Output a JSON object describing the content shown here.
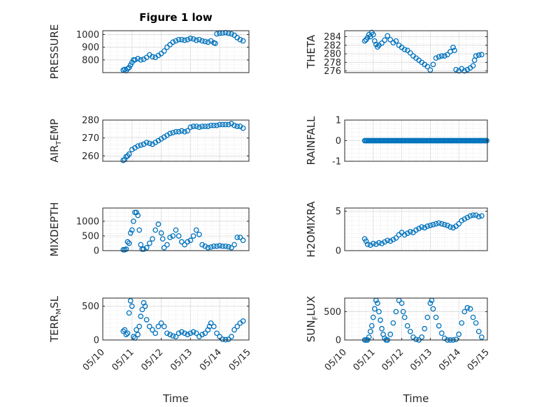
{
  "title": "Figure 1 low",
  "marker_color": "#0072bd",
  "chart_data": [
    {
      "type": "scatter",
      "id": "pressure",
      "title": "Figure 1 low",
      "ylabel_parts": [
        "PRESSURE"
      ],
      "xlabel": "",
      "xlim": [
        0,
        5
      ],
      "ylim": [
        700,
        1030
      ],
      "xticks": [],
      "xticklabels": [],
      "yticks": [
        800,
        900,
        1000
      ],
      "yticklabels": [
        "800",
        "900",
        "1000"
      ],
      "grid": true,
      "x": [
        0.7,
        0.75,
        0.8,
        0.85,
        0.9,
        0.95,
        1.0,
        1.05,
        1.1,
        1.2,
        1.3,
        1.4,
        1.5,
        1.6,
        1.7,
        1.8,
        1.9,
        2.0,
        2.1,
        2.2,
        2.3,
        2.4,
        2.5,
        2.6,
        2.7,
        2.8,
        2.9,
        3.0,
        3.1,
        3.2,
        3.3,
        3.4,
        3.5,
        3.6,
        3.7,
        3.8,
        3.85,
        3.9,
        4.0,
        4.1,
        4.2,
        4.3,
        4.4,
        4.5,
        4.6,
        4.7,
        4.8
      ],
      "y": [
        720,
        725,
        715,
        730,
        740,
        760,
        780,
        800,
        800,
        810,
        800,
        805,
        820,
        840,
        825,
        820,
        835,
        850,
        870,
        900,
        920,
        940,
        950,
        960,
        960,
        955,
        960,
        970,
        965,
        955,
        960,
        950,
        945,
        940,
        950,
        935,
        930,
        1005,
        1010,
        1012,
        1015,
        1010,
        1005,
        995,
        975,
        960,
        950
      ]
    },
    {
      "type": "scatter",
      "id": "theta",
      "ylabel_parts": [
        "THETA"
      ],
      "xlabel": "",
      "xlim": [
        0,
        5
      ],
      "ylim": [
        275.6,
        285.4
      ],
      "xticks": [],
      "xticklabels": [],
      "yticks": [
        276,
        278,
        280,
        282,
        284
      ],
      "yticklabels": [
        "276",
        "278",
        "280",
        "282",
        "284"
      ],
      "grid": true,
      "x": [
        0.7,
        0.75,
        0.8,
        0.85,
        0.9,
        0.95,
        1.0,
        1.05,
        1.1,
        1.15,
        1.2,
        1.3,
        1.4,
        1.5,
        1.6,
        1.7,
        1.8,
        1.9,
        2.0,
        2.1,
        2.2,
        2.3,
        2.4,
        2.5,
        2.6,
        2.7,
        2.8,
        2.9,
        3.0,
        3.1,
        3.2,
        3.3,
        3.4,
        3.5,
        3.6,
        3.7,
        3.8,
        3.85,
        3.9,
        4.0,
        4.1,
        4.2,
        4.3,
        4.4,
        4.5,
        4.55,
        4.6,
        4.7,
        4.8
      ],
      "y": [
        283.0,
        283.3,
        283.8,
        284.5,
        284.0,
        285.0,
        284.5,
        283.0,
        282.2,
        281.6,
        282.0,
        282.5,
        283.2,
        284.2,
        283.3,
        282.6,
        283.0,
        282.0,
        281.5,
        281.0,
        280.8,
        280.2,
        279.5,
        279.0,
        278.5,
        278.0,
        277.5,
        277.0,
        276.2,
        277.5,
        279.0,
        279.3,
        279.5,
        279.5,
        279.8,
        280.5,
        281.5,
        280.8,
        276.3,
        276.0,
        276.5,
        276.0,
        276.3,
        276.7,
        277.2,
        278.5,
        279.5,
        279.7,
        279.8
      ]
    },
    {
      "type": "scatter",
      "id": "air_temp",
      "ylabel_parts": [
        "AIR",
        "T",
        "EMP"
      ],
      "xlabel": "",
      "xlim": [
        0,
        5
      ],
      "ylim": [
        257,
        280
      ],
      "xticks": [],
      "xticklabels": [],
      "yticks": [
        260,
        270,
        280
      ],
      "yticklabels": [
        "260",
        "270",
        "280"
      ],
      "grid": true,
      "x": [
        0.7,
        0.75,
        0.8,
        0.85,
        0.9,
        1.0,
        1.1,
        1.2,
        1.3,
        1.4,
        1.5,
        1.6,
        1.7,
        1.8,
        1.9,
        2.0,
        2.1,
        2.2,
        2.3,
        2.4,
        2.5,
        2.6,
        2.7,
        2.8,
        2.9,
        3.0,
        3.1,
        3.2,
        3.3,
        3.4,
        3.5,
        3.6,
        3.7,
        3.8,
        3.9,
        4.0,
        4.1,
        4.2,
        4.3,
        4.4,
        4.5,
        4.6,
        4.7,
        4.8
      ],
      "y": [
        257.5,
        258.0,
        259.5,
        260.0,
        261.0,
        263.5,
        264.5,
        265.5,
        266.0,
        266.5,
        267.5,
        267.0,
        266.5,
        267.5,
        268.5,
        269.5,
        270.5,
        271.5,
        272.5,
        273.0,
        273.5,
        273.5,
        274.0,
        273.5,
        274.0,
        276.0,
        276.5,
        276.5,
        276.0,
        276.5,
        276.5,
        276.5,
        277.0,
        277.0,
        277.0,
        277.5,
        277.5,
        277.5,
        277.5,
        278.0,
        277.0,
        276.5,
        276.5,
        275.5
      ]
    },
    {
      "type": "scatter",
      "id": "rainfall",
      "ylabel_parts": [
        "RAINFALL"
      ],
      "xlabel": "",
      "xlim": [
        0,
        5
      ],
      "ylim": [
        -1,
        1
      ],
      "xticks": [],
      "xticklabels": [],
      "yticks": [
        -1,
        0,
        1
      ],
      "yticklabels": [
        "-1",
        "0",
        "1"
      ],
      "grid": true,
      "x_range": [
        0.7,
        5.0
      ],
      "x_step": 0.04,
      "constant_y": 0
    },
    {
      "type": "scatter",
      "id": "mixdepth",
      "ylabel_parts": [
        "MIXDEPTH"
      ],
      "xlabel": "",
      "xlim": [
        0,
        5
      ],
      "ylim": [
        0,
        1450
      ],
      "xticks": [],
      "xticklabels": [],
      "yticks": [
        0,
        500,
        1000
      ],
      "yticklabels": [
        "0",
        "500",
        "1000"
      ],
      "grid": true,
      "x": [
        0.7,
        0.75,
        0.8,
        0.85,
        0.9,
        0.95,
        1.0,
        1.05,
        1.1,
        1.15,
        1.2,
        1.25,
        1.3,
        1.35,
        1.4,
        1.5,
        1.6,
        1.7,
        1.8,
        1.9,
        2.0,
        2.05,
        2.1,
        2.2,
        2.3,
        2.4,
        2.5,
        2.6,
        2.7,
        2.8,
        2.9,
        3.0,
        3.1,
        3.2,
        3.3,
        3.4,
        3.5,
        3.6,
        3.7,
        3.8,
        3.9,
        4.0,
        4.1,
        4.2,
        4.3,
        4.4,
        4.5,
        4.6,
        4.7,
        4.8
      ],
      "y": [
        30,
        30,
        50,
        300,
        250,
        600,
        700,
        1000,
        1300,
        1300,
        1200,
        700,
        200,
        50,
        50,
        100,
        250,
        400,
        700,
        900,
        600,
        400,
        100,
        200,
        450,
        500,
        700,
        500,
        300,
        200,
        300,
        350,
        500,
        700,
        550,
        200,
        150,
        100,
        120,
        150,
        150,
        170,
        150,
        150,
        130,
        100,
        200,
        450,
        450,
        350
      ]
    },
    {
      "type": "scatter",
      "id": "h2omixra",
      "ylabel_parts": [
        "H2OMIXRA"
      ],
      "xlabel": "",
      "xlim": [
        0,
        5
      ],
      "ylim": [
        0,
        5.4
      ],
      "xticks": [],
      "xticklabels": [],
      "yticks": [
        0,
        5
      ],
      "yticklabels": [
        "0",
        "5"
      ],
      "grid": true,
      "x": [
        0.7,
        0.75,
        0.8,
        0.9,
        1.0,
        1.1,
        1.2,
        1.3,
        1.4,
        1.5,
        1.6,
        1.7,
        1.8,
        1.9,
        2.0,
        2.1,
        2.2,
        2.3,
        2.4,
        2.5,
        2.6,
        2.7,
        2.8,
        2.9,
        3.0,
        3.1,
        3.2,
        3.3,
        3.4,
        3.5,
        3.6,
        3.7,
        3.8,
        3.9,
        4.0,
        4.1,
        4.2,
        4.3,
        4.4,
        4.5,
        4.6,
        4.7,
        4.8
      ],
      "y": [
        1.5,
        1.2,
        0.8,
        0.7,
        0.9,
        0.8,
        1.0,
        0.9,
        1.1,
        1.3,
        1.2,
        1.4,
        1.6,
        2.0,
        2.3,
        2.0,
        2.2,
        2.4,
        2.3,
        2.6,
        2.8,
        3.0,
        2.9,
        3.1,
        3.2,
        3.3,
        3.4,
        3.5,
        3.4,
        3.3,
        3.2,
        3.0,
        2.9,
        3.1,
        3.4,
        3.8,
        4.0,
        4.2,
        4.4,
        4.5,
        4.5,
        4.3,
        4.4
      ]
    },
    {
      "type": "scatter",
      "id": "terr_msl",
      "ylabel_parts": [
        "TERR",
        "M",
        "SL"
      ],
      "xlabel": "Time",
      "xlim": [
        0,
        5
      ],
      "ylim": [
        0,
        620
      ],
      "xticks": [
        0,
        1,
        2,
        3,
        4,
        5
      ],
      "xticklabels": [
        "05/10",
        "05/11",
        "05/12",
        "05/13",
        "05/14",
        "05/15"
      ],
      "yticks": [
        0,
        500
      ],
      "yticklabels": [
        "0",
        "500"
      ],
      "grid": true,
      "x": [
        0.7,
        0.75,
        0.8,
        0.85,
        0.9,
        0.95,
        1.0,
        1.05,
        1.1,
        1.15,
        1.2,
        1.25,
        1.3,
        1.35,
        1.4,
        1.45,
        1.5,
        1.6,
        1.7,
        1.8,
        1.9,
        2.0,
        2.1,
        2.2,
        2.3,
        2.4,
        2.5,
        2.6,
        2.7,
        2.8,
        2.9,
        3.0,
        3.1,
        3.2,
        3.3,
        3.4,
        3.5,
        3.6,
        3.65,
        3.7,
        3.8,
        3.9,
        4.0,
        4.1,
        4.2,
        4.3,
        4.4,
        4.5,
        4.6,
        4.7,
        4.8
      ],
      "y": [
        130,
        150,
        80,
        100,
        400,
        580,
        500,
        50,
        30,
        150,
        80,
        200,
        350,
        450,
        550,
        500,
        300,
        200,
        150,
        100,
        200,
        250,
        200,
        100,
        80,
        60,
        50,
        100,
        120,
        100,
        80,
        100,
        120,
        100,
        50,
        80,
        100,
        150,
        200,
        250,
        200,
        100,
        50,
        10,
        5,
        10,
        50,
        150,
        200,
        250,
        280
      ]
    },
    {
      "type": "scatter",
      "id": "sun_flux",
      "ylabel_parts": [
        "SUN",
        "F",
        "LUX"
      ],
      "xlabel": "Time",
      "xlim": [
        0,
        5
      ],
      "ylim": [
        0,
        740
      ],
      "xticks": [
        0,
        1,
        2,
        3,
        4,
        5
      ],
      "xticklabels": [
        "05/10",
        "05/11",
        "05/12",
        "05/13",
        "05/14",
        "05/15"
      ],
      "yticks": [
        0,
        500
      ],
      "yticklabels": [
        "0",
        "500"
      ],
      "grid": true,
      "x": [
        0.7,
        0.75,
        0.8,
        0.85,
        0.9,
        0.95,
        1.0,
        1.05,
        1.1,
        1.15,
        1.2,
        1.25,
        1.3,
        1.35,
        1.4,
        1.45,
        1.5,
        1.6,
        1.7,
        1.8,
        1.9,
        2.0,
        2.05,
        2.1,
        2.2,
        2.3,
        2.4,
        2.5,
        2.6,
        2.7,
        2.8,
        2.9,
        3.0,
        3.05,
        3.1,
        3.2,
        3.3,
        3.4,
        3.5,
        3.6,
        3.7,
        3.8,
        3.9,
        4.0,
        4.1,
        4.2,
        4.3,
        4.4,
        4.5,
        4.6,
        4.7,
        4.8
      ],
      "y": [
        0,
        0,
        0,
        50,
        150,
        250,
        400,
        550,
        700,
        650,
        500,
        350,
        200,
        100,
        30,
        0,
        0,
        100,
        300,
        500,
        700,
        650,
        500,
        400,
        250,
        150,
        50,
        10,
        0,
        50,
        200,
        400,
        650,
        700,
        550,
        400,
        250,
        120,
        30,
        0,
        0,
        0,
        10,
        100,
        300,
        500,
        570,
        550,
        400,
        300,
        150,
        50
      ]
    }
  ]
}
